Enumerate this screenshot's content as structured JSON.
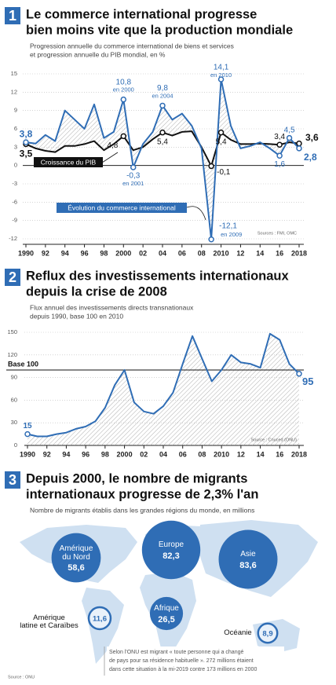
{
  "chart_data": [
    {
      "type": "line",
      "number": "1",
      "title": [
        "Le commerce international progresse",
        "bien moins vite que la production mondiale"
      ],
      "subtitle": [
        "Progression annuelle du commerce international de biens et services",
        "et progression annuelle du PIB mondial, en %"
      ],
      "x": [
        1990,
        1991,
        1992,
        1993,
        1994,
        1995,
        1996,
        1997,
        1998,
        1999,
        2000,
        2001,
        2002,
        2003,
        2004,
        2005,
        2006,
        2007,
        2008,
        2009,
        2010,
        2011,
        2012,
        2013,
        2014,
        2015,
        2016,
        2017,
        2018
      ],
      "xlim": [
        1990,
        2018
      ],
      "xticks": [
        1990,
        {
          "value": 1992,
          "label": "92"
        },
        {
          "value": 1994,
          "label": "94"
        },
        {
          "value": 1996,
          "label": "96"
        },
        {
          "value": 1998,
          "label": "98"
        },
        2000,
        {
          "value": 2002,
          "label": "02"
        },
        {
          "value": 2004,
          "label": "04"
        },
        {
          "value": 2006,
          "label": "06"
        },
        {
          "value": 2008,
          "label": "08"
        },
        2010,
        {
          "value": 2012,
          "label": "12"
        },
        {
          "value": 2014,
          "label": "14"
        },
        {
          "value": 2016,
          "label": "16"
        },
        2018
      ],
      "ylim": [
        -12,
        15
      ],
      "yticks": [
        15,
        12,
        9,
        6,
        3,
        0,
        -3,
        -6,
        -9,
        -12
      ],
      "grid": true,
      "series": [
        {
          "name": "Croissance du PIB",
          "color": "#111111",
          "values": [
            3.5,
            2.8,
            2.4,
            2.2,
            3.2,
            3.2,
            3.5,
            4.0,
            2.5,
            3.5,
            4.8,
            2.5,
            3.0,
            4.3,
            5.4,
            4.9,
            5.5,
            5.6,
            3.0,
            -0.1,
            5.4,
            4.2,
            3.5,
            3.5,
            3.6,
            3.5,
            3.4,
            3.8,
            3.6
          ],
          "value_labels": [
            "3,5",
            null,
            null,
            null,
            null,
            null,
            null,
            null,
            null,
            null,
            "4,8",
            null,
            null,
            null,
            "5,4",
            null,
            null,
            null,
            null,
            "-0,1",
            "5,4",
            null,
            null,
            null,
            null,
            null,
            "3,4",
            null,
            "3,6"
          ]
        },
        {
          "name": "Évolution du commerce international",
          "color": "#2f6db5",
          "values": [
            3.8,
            3.6,
            5.0,
            4.0,
            9.0,
            7.5,
            6.0,
            10.0,
            4.5,
            5.5,
            10.8,
            -0.3,
            3.5,
            5.5,
            9.8,
            7.5,
            8.5,
            6.5,
            2.8,
            -12.1,
            14.1,
            6.5,
            2.8,
            3.2,
            3.8,
            2.8,
            1.6,
            4.5,
            2.8
          ],
          "value_labels": [
            "3,8",
            null,
            null,
            null,
            null,
            null,
            null,
            null,
            null,
            null,
            "10,8",
            "-0,3",
            null,
            null,
            "9,8",
            null,
            null,
            null,
            null,
            "-12,1",
            "14,1",
            null,
            null,
            null,
            null,
            null,
            "1,6",
            "4,5",
            "2,8"
          ]
        }
      ],
      "annotations": [
        "en 2000",
        "en 2001",
        "en 2004",
        "en 2010",
        "en 2009"
      ],
      "source": "Sources : FMI, OMC"
    },
    {
      "type": "line",
      "number": "2",
      "title": [
        "Reflux des investissements internationaux",
        "depuis la crise de 2008"
      ],
      "subtitle": [
        "Flux annuel des investissements directs transnationaux",
        "depuis 1990, base 100 en 2010"
      ],
      "x": [
        1990,
        1991,
        1992,
        1993,
        1994,
        1995,
        1996,
        1997,
        1998,
        1999,
        2000,
        2001,
        2002,
        2003,
        2004,
        2005,
        2006,
        2007,
        2008,
        2009,
        2010,
        2011,
        2012,
        2013,
        2014,
        2015,
        2016,
        2017,
        2018
      ],
      "xlim": [
        1990,
        2018
      ],
      "xticks": [
        1990,
        {
          "value": 1992,
          "label": "92"
        },
        {
          "value": 1994,
          "label": "94"
        },
        {
          "value": 1996,
          "label": "96"
        },
        {
          "value": 1998,
          "label": "98"
        },
        2000,
        {
          "value": 2002,
          "label": "02"
        },
        {
          "value": 2004,
          "label": "04"
        },
        {
          "value": 2006,
          "label": "06"
        },
        {
          "value": 2008,
          "label": "08"
        },
        2010,
        {
          "value": 2012,
          "label": "12"
        },
        {
          "value": 2014,
          "label": "14"
        },
        {
          "value": 2016,
          "label": "16"
        },
        2018
      ],
      "ylim": [
        0,
        150
      ],
      "yticks": [
        150,
        120,
        90,
        60,
        30,
        0
      ],
      "grid": true,
      "reference": {
        "value": 100,
        "label": "Base 100"
      },
      "color": "#2f6db5",
      "values": [
        15,
        12,
        12,
        15,
        17,
        22,
        25,
        32,
        50,
        80,
        100,
        57,
        45,
        42,
        52,
        70,
        108,
        145,
        115,
        85,
        100,
        120,
        110,
        108,
        103,
        148,
        140,
        108,
        95
      ],
      "value_labels": [
        "15",
        null,
        null,
        null,
        null,
        null,
        null,
        null,
        null,
        null,
        null,
        null,
        null,
        null,
        null,
        null,
        null,
        null,
        null,
        null,
        null,
        null,
        null,
        null,
        null,
        null,
        null,
        null,
        "95"
      ],
      "source": "Source : Cnuced (ONU)"
    },
    {
      "type": "bubble",
      "number": "3",
      "title": [
        "Depuis 2000, le nombre de migrants",
        "internationaux progresse de 2,3% l'an"
      ],
      "subtitle": [
        "Nombre de migrants établis dans les grandes régions du monde, en millions"
      ],
      "color": "#2f6db5",
      "categories": [
        "Amérique\ndu Nord",
        "Europe",
        "Asie",
        "Amérique\nlatine et Caraïbes",
        "Afrique",
        "Océanie"
      ],
      "values": [
        58.6,
        82.3,
        83.6,
        11.6,
        26.5,
        8.9
      ],
      "value_labels": [
        "58,6",
        "82,3",
        "83,6",
        "11,6",
        "26,5",
        "8,9"
      ],
      "note": [
        "Selon l'ONU est migrant « toute personne qui a changé",
        "de pays pour sa résidence habituelle ». 272 millions étaient",
        "dans cette situation à la mi-2019 contre 173 millions en 2000"
      ],
      "source": "Source : ONU"
    }
  ]
}
